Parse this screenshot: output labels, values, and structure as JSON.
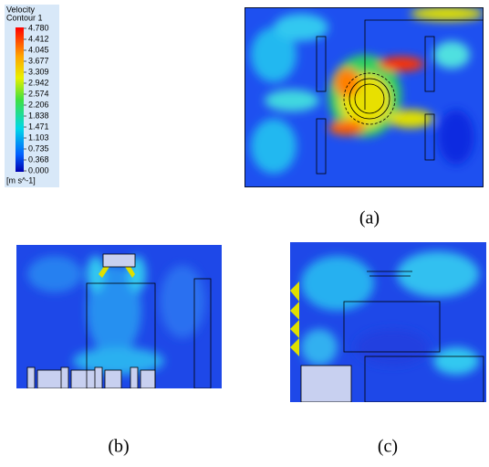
{
  "legend": {
    "title": "Velocity",
    "subtitle": "Contour 1",
    "levels": [
      "4.780",
      "4.412",
      "4.045",
      "3.677",
      "3.309",
      "2.942",
      "2.574",
      "2.206",
      "1.838",
      "1.471",
      "1.103",
      "0.735",
      "0.368",
      "0.000"
    ],
    "unit": "[m s^-1]"
  },
  "captions": [
    "(a)",
    "(b)",
    "(c)"
  ]
}
